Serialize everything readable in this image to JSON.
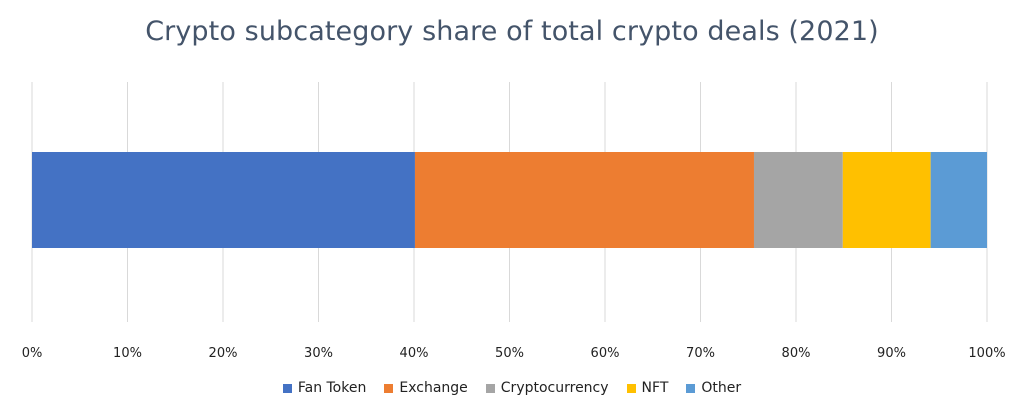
{
  "chart_data": {
    "type": "bar",
    "orientation": "horizontal",
    "stacked": true,
    "title": "Crypto subcategory share of total crypto deals (2021)",
    "xlim": [
      0,
      100
    ],
    "x_ticks": [
      "0%",
      "10%",
      "20%",
      "30%",
      "40%",
      "50%",
      "60%",
      "70%",
      "80%",
      "90%",
      "100%"
    ],
    "grid": true,
    "legend_position": "bottom",
    "series": [
      {
        "name": "Fan Token",
        "value": 40.1,
        "color": "#4472c4"
      },
      {
        "name": "Exchange",
        "value": 35.5,
        "color": "#ed7d31"
      },
      {
        "name": "Cryptocurrency",
        "value": 9.3,
        "color": "#a5a5a5"
      },
      {
        "name": "NFT",
        "value": 9.2,
        "color": "#ffc000"
      },
      {
        "name": "Other",
        "value": 5.9,
        "color": "#5b9bd5"
      }
    ]
  }
}
